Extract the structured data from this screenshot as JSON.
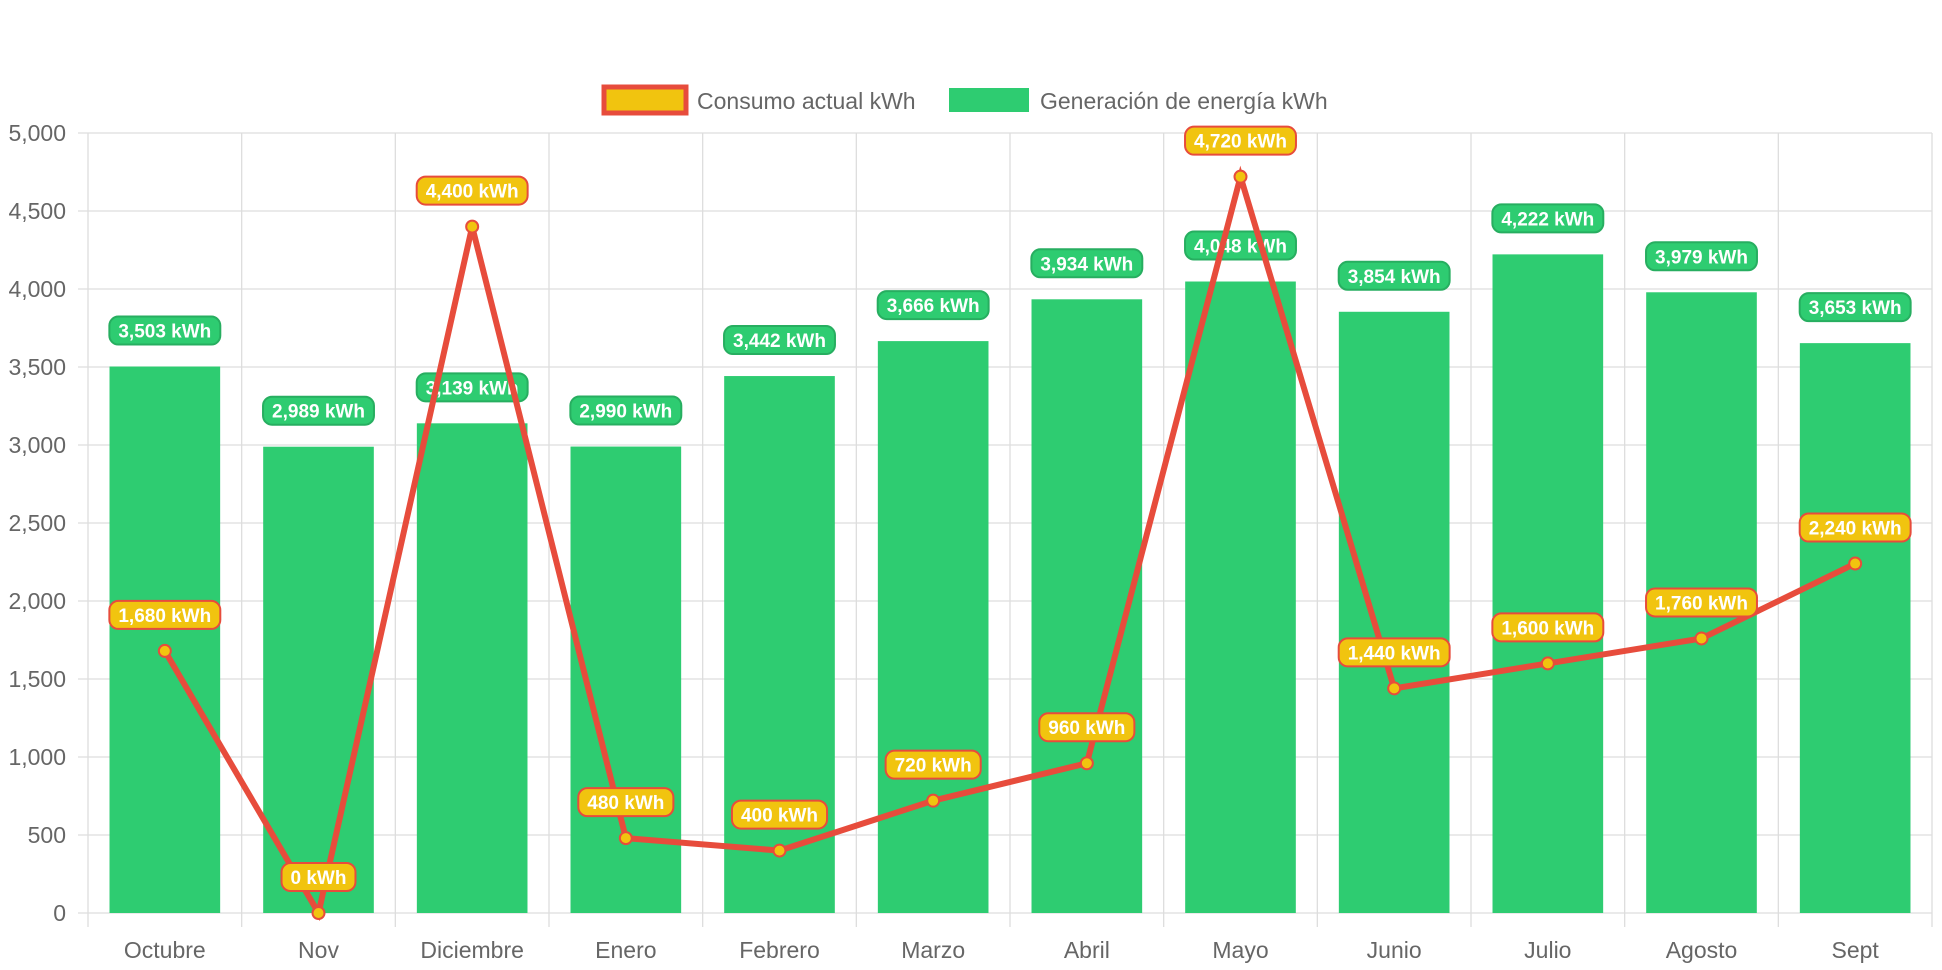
{
  "chart_data": {
    "type": "bar",
    "title": "",
    "xlabel": "",
    "ylabel": "",
    "ylim": [
      0,
      5000
    ],
    "ytick_step": 500,
    "grid": true,
    "legend_position": "top",
    "categories": [
      "Octubre",
      "Nov",
      "Diciembre",
      "Enero",
      "Febrero",
      "Marzo",
      "Abril",
      "Mayo",
      "Junio",
      "Julio",
      "Agosto",
      "Sept"
    ],
    "series": [
      {
        "name": "Consumo actual kWh",
        "kind": "line",
        "color": "#e74c3c",
        "fill": "#f1c40f",
        "values": [
          1680,
          0,
          4400,
          480,
          400,
          720,
          960,
          4720,
          1440,
          1600,
          1760,
          2240
        ],
        "labels": [
          "1,680 kWh",
          "0 kWh",
          "4,400 kWh",
          "480 kWh",
          "400 kWh",
          "720 kWh",
          "960 kWh",
          "4,720 kWh",
          "1,440 kWh",
          "1,600 kWh",
          "1,760 kWh",
          "2,240 kWh"
        ]
      },
      {
        "name": "Generación de energía kWh",
        "kind": "bar",
        "color": "#2ecc71",
        "values": [
          3503,
          2989,
          3139,
          2990,
          3442,
          3666,
          3934,
          4048,
          3854,
          4222,
          3979,
          3653
        ],
        "labels": [
          "3,503 kWh",
          "2,989 kWh",
          "3,139 kWh",
          "2,990 kWh",
          "3,442 kWh",
          "3,666 kWh",
          "3,934 kWh",
          "4,048 kWh",
          "3,854 kWh",
          "4,222 kWh",
          "3,979 kWh",
          "3,653 kWh"
        ]
      }
    ]
  }
}
